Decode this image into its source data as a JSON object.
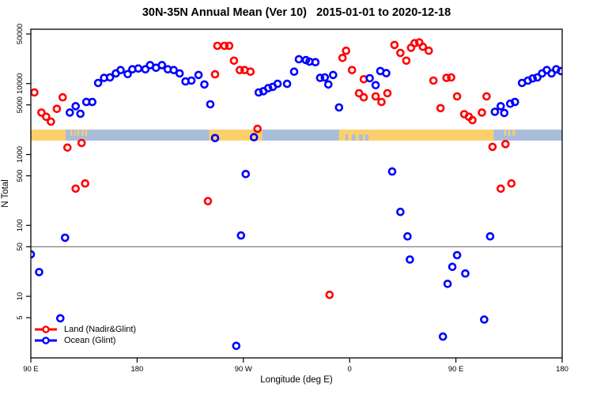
{
  "chart_data": {
    "type": "scatter",
    "title": "30N-35N Annual Mean (Ver 10)   2015-01-01 to 2020-12-18",
    "xlabel": "Longitude (deg E)",
    "ylabel": "N Total",
    "x_axis": {
      "min": 90,
      "max": 540,
      "ticks": [
        {
          "lon": 90,
          "label": "90 E"
        },
        {
          "lon": 180,
          "label": "180"
        },
        {
          "lon": 270,
          "label": "90 W"
        },
        {
          "lon": 360,
          "label": "0"
        },
        {
          "lon": 450,
          "label": "90 E"
        },
        {
          "lon": 540,
          "label": "180"
        }
      ]
    },
    "y_axis": {
      "scale": "log",
      "ticks": [
        50000,
        10000,
        5000,
        1000,
        500,
        100,
        50,
        10,
        5
      ]
    },
    "reference_line": {
      "value": 50,
      "color": "#808080"
    },
    "map_strip": {
      "ocean_color": "#A9BDDB",
      "land_color": "#FBD06C",
      "land_segments": [
        [
          90,
          119.5
        ],
        [
          241,
          286
        ],
        [
          351,
          482
        ]
      ],
      "land_speckles": [
        [
          123.5,
          125
        ],
        [
          127,
          128
        ],
        [
          129.5,
          131
        ],
        [
          133,
          134.5
        ],
        [
          136,
          137.5
        ],
        [
          491,
          492.5
        ],
        [
          494.5,
          496
        ],
        [
          498,
          500
        ]
      ],
      "ocean_notches": [
        [
          356.5,
          358.5
        ],
        [
          362,
          365
        ],
        [
          368,
          371
        ],
        [
          373,
          376
        ]
      ]
    },
    "series": [
      {
        "name": "Land (Nadir&Glint)",
        "color": "#FF0000",
        "points": [
          [
            93,
            7500
          ],
          [
            99,
            3900
          ],
          [
            103,
            3400
          ],
          [
            107,
            2900
          ],
          [
            112,
            4400
          ],
          [
            117,
            6400
          ],
          [
            121,
            1250
          ],
          [
            128,
            330
          ],
          [
            133,
            1450
          ],
          [
            136,
            390
          ],
          [
            240,
            220
          ],
          [
            246,
            13500
          ],
          [
            248,
            34000
          ],
          [
            254,
            34000
          ],
          [
            258,
            34000
          ],
          [
            262,
            21000
          ],
          [
            267,
            15500
          ],
          [
            271,
            15500
          ],
          [
            276,
            14700
          ],
          [
            282,
            2300
          ],
          [
            343,
            10.5
          ],
          [
            354,
            23000
          ],
          [
            357,
            29000
          ],
          [
            362,
            15500
          ],
          [
            368,
            7300
          ],
          [
            372,
            11500
          ],
          [
            372,
            6400
          ],
          [
            382,
            6600
          ],
          [
            387,
            5500
          ],
          [
            392,
            7300
          ],
          [
            398,
            35000
          ],
          [
            403,
            27000
          ],
          [
            408,
            21000
          ],
          [
            412,
            32000
          ],
          [
            415,
            37000
          ],
          [
            419,
            38000
          ],
          [
            422,
            33000
          ],
          [
            427,
            29000
          ],
          [
            431,
            11000
          ],
          [
            437,
            4500
          ],
          [
            442,
            12000
          ],
          [
            446,
            12200
          ],
          [
            451,
            6600
          ],
          [
            457,
            3700
          ],
          [
            461,
            3400
          ],
          [
            464,
            3050
          ],
          [
            472,
            3900
          ],
          [
            476,
            6600
          ],
          [
            481,
            1280
          ],
          [
            488,
            330
          ],
          [
            492,
            1400
          ],
          [
            497,
            390
          ]
        ]
      },
      {
        "name": "Ocean (Glint)",
        "color": "#0000FF",
        "points": [
          [
            90,
            39
          ],
          [
            97,
            22
          ],
          [
            115,
            4.9
          ],
          [
            119,
            67
          ],
          [
            123,
            3900
          ],
          [
            128,
            4800
          ],
          [
            132,
            3750
          ],
          [
            137,
            5500
          ],
          [
            142,
            5500
          ],
          [
            147,
            10200
          ],
          [
            152,
            12000
          ],
          [
            157,
            12200
          ],
          [
            162,
            13900
          ],
          [
            166,
            15500
          ],
          [
            172,
            13600
          ],
          [
            176,
            15900
          ],
          [
            181,
            16300
          ],
          [
            187,
            15900
          ],
          [
            191,
            18200
          ],
          [
            196,
            16700
          ],
          [
            201,
            18200
          ],
          [
            206,
            15900
          ],
          [
            211,
            15500
          ],
          [
            216,
            13900
          ],
          [
            221,
            10700
          ],
          [
            226,
            11000
          ],
          [
            232,
            13200
          ],
          [
            237,
            9700
          ],
          [
            242,
            5100
          ],
          [
            246,
            1700
          ],
          [
            264,
            2
          ],
          [
            268,
            72
          ],
          [
            272,
            530
          ],
          [
            279,
            1750
          ],
          [
            283,
            7500
          ],
          [
            287,
            7800
          ],
          [
            291,
            8600
          ],
          [
            295,
            9000
          ],
          [
            299,
            9900
          ],
          [
            307,
            9900
          ],
          [
            313,
            14700
          ],
          [
            317,
            22000
          ],
          [
            323,
            21400
          ],
          [
            326,
            20400
          ],
          [
            331,
            20000
          ],
          [
            335,
            12000
          ],
          [
            339,
            12200
          ],
          [
            342,
            9700
          ],
          [
            346,
            13200
          ],
          [
            351,
            4600
          ],
          [
            377,
            11900
          ],
          [
            382,
            9500
          ],
          [
            386,
            15000
          ],
          [
            391,
            14000
          ],
          [
            396,
            575
          ],
          [
            403,
            155
          ],
          [
            409,
            70
          ],
          [
            411,
            33
          ],
          [
            439,
            2.7
          ],
          [
            443,
            15
          ],
          [
            447,
            26
          ],
          [
            451,
            38
          ],
          [
            458,
            21
          ],
          [
            474,
            4.7
          ],
          [
            479,
            70
          ],
          [
            483,
            4000
          ],
          [
            488,
            4800
          ],
          [
            491,
            3850
          ],
          [
            496,
            5200
          ],
          [
            500,
            5500
          ],
          [
            506,
            10200
          ],
          [
            511,
            11000
          ],
          [
            515,
            11800
          ],
          [
            519,
            12200
          ],
          [
            523,
            13900
          ],
          [
            527,
            15500
          ],
          [
            531,
            13900
          ],
          [
            535,
            15900
          ],
          [
            539,
            15000
          ]
        ]
      }
    ]
  }
}
